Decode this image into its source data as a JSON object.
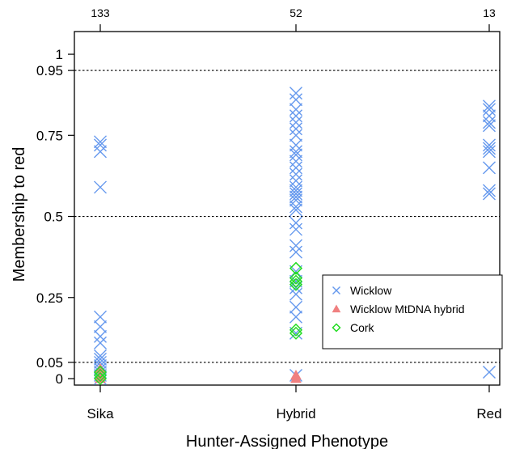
{
  "chart_data": {
    "type": "scatter",
    "title": "",
    "xlabel": "Hunter-Assigned Phenotype",
    "ylabel": "Membership to red",
    "categories": [
      "Sika",
      "Hybrid",
      "Red"
    ],
    "top_counts": [
      "133",
      "52",
      "13"
    ],
    "y_ticks": [
      {
        "value": 0,
        "label": "0"
      },
      {
        "value": 0.05,
        "label": "0.05"
      },
      {
        "value": 0.25,
        "label": "0.25"
      },
      {
        "value": 0.5,
        "label": "0.5"
      },
      {
        "value": 0.75,
        "label": "0.75"
      },
      {
        "value": 0.95,
        "label": "0.95"
      },
      {
        "value": 1,
        "label": "1"
      }
    ],
    "reference_lines": [
      0.05,
      0.5,
      0.95
    ],
    "ylim": [
      -0.02,
      1.07
    ],
    "legend": {
      "position": "lower-right"
    },
    "series": [
      {
        "name": "Wicklow",
        "marker": "x",
        "color": "#6699ee",
        "points": [
          {
            "x": "Sika",
            "y": 0.73
          },
          {
            "x": "Sika",
            "y": 0.72
          },
          {
            "x": "Sika",
            "y": 0.7
          },
          {
            "x": "Sika",
            "y": 0.59
          },
          {
            "x": "Sika",
            "y": 0.19
          },
          {
            "x": "Sika",
            "y": 0.16
          },
          {
            "x": "Sika",
            "y": 0.13
          },
          {
            "x": "Sika",
            "y": 0.11
          },
          {
            "x": "Sika",
            "y": 0.07
          },
          {
            "x": "Sika",
            "y": 0.06
          },
          {
            "x": "Sika",
            "y": 0.05
          },
          {
            "x": "Sika",
            "y": 0.04
          },
          {
            "x": "Sika",
            "y": 0.03
          },
          {
            "x": "Sika",
            "y": 0.02
          },
          {
            "x": "Sika",
            "y": 0.01
          },
          {
            "x": "Sika",
            "y": 0.0
          },
          {
            "x": "Hybrid",
            "y": 0.88
          },
          {
            "x": "Hybrid",
            "y": 0.86
          },
          {
            "x": "Hybrid",
            "y": 0.83
          },
          {
            "x": "Hybrid",
            "y": 0.81
          },
          {
            "x": "Hybrid",
            "y": 0.79
          },
          {
            "x": "Hybrid",
            "y": 0.77
          },
          {
            "x": "Hybrid",
            "y": 0.75
          },
          {
            "x": "Hybrid",
            "y": 0.72
          },
          {
            "x": "Hybrid",
            "y": 0.7
          },
          {
            "x": "Hybrid",
            "y": 0.69
          },
          {
            "x": "Hybrid",
            "y": 0.67
          },
          {
            "x": "Hybrid",
            "y": 0.65
          },
          {
            "x": "Hybrid",
            "y": 0.63
          },
          {
            "x": "Hybrid",
            "y": 0.61
          },
          {
            "x": "Hybrid",
            "y": 0.59
          },
          {
            "x": "Hybrid",
            "y": 0.58
          },
          {
            "x": "Hybrid",
            "y": 0.57
          },
          {
            "x": "Hybrid",
            "y": 0.56
          },
          {
            "x": "Hybrid",
            "y": 0.55
          },
          {
            "x": "Hybrid",
            "y": 0.53
          },
          {
            "x": "Hybrid",
            "y": 0.52
          },
          {
            "x": "Hybrid",
            "y": 0.48
          },
          {
            "x": "Hybrid",
            "y": 0.46
          },
          {
            "x": "Hybrid",
            "y": 0.41
          },
          {
            "x": "Hybrid",
            "y": 0.39
          },
          {
            "x": "Hybrid",
            "y": 0.33
          },
          {
            "x": "Hybrid",
            "y": 0.3
          },
          {
            "x": "Hybrid",
            "y": 0.28
          },
          {
            "x": "Hybrid",
            "y": 0.26
          },
          {
            "x": "Hybrid",
            "y": 0.22
          },
          {
            "x": "Hybrid",
            "y": 0.19
          },
          {
            "x": "Hybrid",
            "y": 0.14
          },
          {
            "x": "Hybrid",
            "y": 0.01
          },
          {
            "x": "Red",
            "y": 0.84
          },
          {
            "x": "Red",
            "y": 0.83
          },
          {
            "x": "Red",
            "y": 0.81
          },
          {
            "x": "Red",
            "y": 0.79
          },
          {
            "x": "Red",
            "y": 0.78
          },
          {
            "x": "Red",
            "y": 0.72
          },
          {
            "x": "Red",
            "y": 0.71
          },
          {
            "x": "Red",
            "y": 0.7
          },
          {
            "x": "Red",
            "y": 0.65
          },
          {
            "x": "Red",
            "y": 0.58
          },
          {
            "x": "Red",
            "y": 0.57
          },
          {
            "x": "Red",
            "y": 0.02
          }
        ]
      },
      {
        "name": "Wicklow MtDNA hybrid",
        "marker": "triangle",
        "color": "#f08080",
        "points": [
          {
            "x": "Sika",
            "y": 0.03
          },
          {
            "x": "Sika",
            "y": 0.01
          },
          {
            "x": "Sika",
            "y": 0.0
          },
          {
            "x": "Hybrid",
            "y": 0.01
          },
          {
            "x": "Hybrid",
            "y": 0.0
          }
        ]
      },
      {
        "name": "Cork",
        "marker": "diamond",
        "color": "#22dd22",
        "points": [
          {
            "x": "Sika",
            "y": 0.02
          },
          {
            "x": "Sika",
            "y": 0.01
          },
          {
            "x": "Sika",
            "y": 0.0
          },
          {
            "x": "Hybrid",
            "y": 0.34
          },
          {
            "x": "Hybrid",
            "y": 0.31
          },
          {
            "x": "Hybrid",
            "y": 0.3
          },
          {
            "x": "Hybrid",
            "y": 0.29
          },
          {
            "x": "Hybrid",
            "y": 0.15
          },
          {
            "x": "Hybrid",
            "y": 0.14
          }
        ]
      }
    ]
  }
}
